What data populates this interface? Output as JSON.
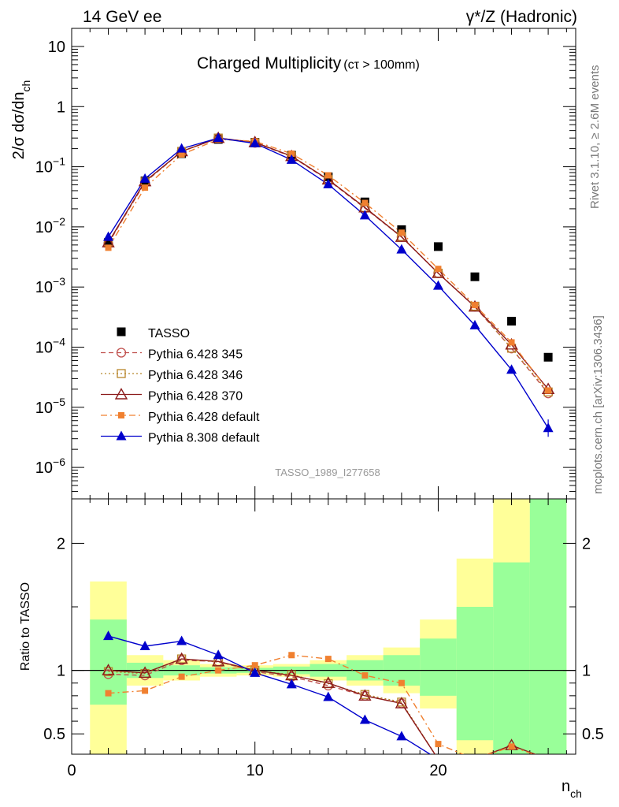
{
  "header": {
    "left": "14 GeV ee",
    "right": "γ*/Z (Hadronic)"
  },
  "side": {
    "rivet": "Rivet 3.1.10, ≥ 2.6M events",
    "mcplots": "mcplots.cern.ch [arXiv:1306.3436]"
  },
  "watermark": "TASSO_1989_I277658",
  "chart_data": [
    {
      "type": "scatter",
      "title": "Charged Multiplicity",
      "title_suffix": "(cτ > 100mm)",
      "ylabel": "2/σ dσ/dn_ch",
      "yscale": "log",
      "xlim": [
        0,
        27.5
      ],
      "ylim": [
        3e-07,
        20
      ],
      "yticks": [
        {
          "v": 1e-06,
          "m": "10",
          "e": "−6"
        },
        {
          "v": 1e-05,
          "m": "10",
          "e": "−5"
        },
        {
          "v": 0.0001,
          "m": "10",
          "e": "−4"
        },
        {
          "v": 0.001,
          "m": "10",
          "e": "−3"
        },
        {
          "v": 0.01,
          "m": "10",
          "e": "−2"
        },
        {
          "v": 0.1,
          "m": "10",
          "e": "−1"
        },
        {
          "v": 1,
          "m": "1",
          "e": ""
        },
        {
          "v": 10,
          "m": "10",
          "e": ""
        }
      ],
      "legend_position": "lower-left",
      "series": [
        {
          "name": "TASSO",
          "marker": "square",
          "color": "#000000",
          "line": "none",
          "x": [
            2,
            4,
            6,
            8,
            10,
            12,
            14,
            16,
            18,
            20,
            22,
            24,
            26
          ],
          "y": [
            0.0055,
            0.058,
            0.165,
            0.285,
            0.255,
            0.155,
            0.068,
            0.026,
            0.009,
            0.0047,
            0.00148,
            0.00027,
            6.8e-05
          ]
        },
        {
          "name": "Pythia 6.428 345",
          "marker": "circle-open",
          "color": "#c0504d",
          "line": "dashed",
          "x": [
            2,
            4,
            6,
            8,
            10,
            12,
            14,
            16,
            18,
            20,
            22,
            24,
            26
          ],
          "y": [
            0.0053,
            0.055,
            0.18,
            0.3,
            0.25,
            0.148,
            0.06,
            0.0205,
            0.0068,
            0.0017,
            0.00047,
            9.5e-05,
            1.7e-05
          ]
        },
        {
          "name": "Pythia 6.428 346",
          "marker": "square-open",
          "color": "#b8862b",
          "line": "dotted",
          "x": [
            2,
            4,
            6,
            8,
            10,
            12,
            14,
            16,
            18,
            20,
            22,
            24,
            26
          ],
          "y": [
            0.0054,
            0.056,
            0.18,
            0.3,
            0.25,
            0.15,
            0.061,
            0.021,
            0.0069,
            0.0017,
            0.00048,
            9.6e-05,
            1.8e-05
          ]
        },
        {
          "name": "Pythia 6.428 370",
          "marker": "triangle-open",
          "color": "#8b1a1a",
          "line": "solid",
          "x": [
            2,
            4,
            6,
            8,
            10,
            12,
            14,
            16,
            18,
            20,
            22,
            24,
            26
          ],
          "y": [
            0.0055,
            0.057,
            0.18,
            0.3,
            0.255,
            0.15,
            0.061,
            0.021,
            0.0068,
            0.0017,
            0.00047,
            0.00011,
            2e-05
          ]
        },
        {
          "name": "Pythia 6.428 default",
          "marker": "square-small",
          "color": "#f08030",
          "line": "dashdot",
          "x": [
            2,
            4,
            6,
            8,
            10,
            12,
            14,
            16,
            18,
            20,
            22,
            24,
            26
          ],
          "y": [
            0.0045,
            0.045,
            0.16,
            0.285,
            0.265,
            0.165,
            0.072,
            0.025,
            0.008,
            0.002,
            0.0005,
            0.00012,
            1.9e-05
          ]
        },
        {
          "name": "Pythia 8.308 default",
          "marker": "triangle",
          "color": "#0000cc",
          "line": "solid",
          "x": [
            2,
            4,
            6,
            8,
            10,
            12,
            14,
            16,
            18,
            20,
            22,
            24,
            26
          ],
          "y": [
            0.0068,
            0.063,
            0.2,
            0.3,
            0.245,
            0.13,
            0.051,
            0.0155,
            0.0042,
            0.00105,
            0.00023,
            4.2e-05,
            4.5e-06
          ]
        }
      ]
    },
    {
      "type": "scatter",
      "ylabel": "Ratio to TASSO",
      "xlabel": "n_ch",
      "xlim": [
        0,
        27.5
      ],
      "ylim": [
        0.34,
        2.35
      ],
      "xticks": [
        0,
        10,
        20
      ],
      "yticks": [
        0.5,
        1,
        2
      ],
      "reference_line": 1,
      "bands": {
        "x_edges": [
          1,
          3,
          5,
          7,
          9,
          11,
          13,
          15,
          17,
          19,
          21,
          23,
          25,
          27
        ],
        "outer": [
          [
            0.3,
            1.7
          ],
          [
            0.88,
            1.12
          ],
          [
            0.92,
            1.08
          ],
          [
            0.95,
            1.05
          ],
          [
            0.96,
            1.04
          ],
          [
            0.95,
            1.05
          ],
          [
            0.92,
            1.08
          ],
          [
            0.88,
            1.12
          ],
          [
            0.82,
            1.18
          ],
          [
            0.7,
            1.4
          ],
          [
            0.3,
            1.88
          ],
          [
            0.3,
            2.4
          ],
          [
            0.3,
            2.4
          ]
        ],
        "inner": [
          [
            0.73,
            1.4
          ],
          [
            0.94,
            1.06
          ],
          [
            0.96,
            1.04
          ],
          [
            0.975,
            1.025
          ],
          [
            0.98,
            1.02
          ],
          [
            0.97,
            1.03
          ],
          [
            0.95,
            1.05
          ],
          [
            0.92,
            1.08
          ],
          [
            0.88,
            1.12
          ],
          [
            0.8,
            1.25
          ],
          [
            0.45,
            1.5
          ],
          [
            0.3,
            1.85
          ],
          [
            0.3,
            2.4
          ]
        ],
        "outer_color": "#ffff99",
        "inner_color": "#99ff99"
      },
      "series": [
        {
          "name": "Pythia 6.428 345",
          "x": [
            2,
            4,
            6,
            8,
            10,
            12,
            14,
            16,
            18,
            20
          ],
          "y": [
            0.97,
            0.96,
            1.08,
            1.07,
            0.99,
            0.95,
            0.88,
            0.8,
            0.74,
            0.3
          ]
        },
        {
          "name": "Pythia 6.428 346",
          "x": [
            2,
            4,
            6,
            8,
            10,
            12,
            14,
            16,
            18,
            20
          ],
          "y": [
            0.99,
            0.975,
            1.09,
            1.065,
            1.0,
            0.965,
            0.895,
            0.81,
            0.75,
            0.3
          ]
        },
        {
          "name": "Pythia 6.428 370",
          "x": [
            2,
            4,
            6,
            8,
            10,
            12,
            14,
            16,
            18,
            20,
            22,
            24,
            26
          ],
          "y": [
            1.0,
            0.98,
            1.09,
            1.07,
            1.0,
            0.96,
            0.9,
            0.8,
            0.74,
            0.3,
            0.3,
            0.41,
            0.3
          ]
        },
        {
          "name": "Pythia 6.428 default",
          "x": [
            2,
            4,
            6,
            8,
            10,
            12,
            14,
            16,
            18,
            20,
            22,
            24,
            26
          ],
          "y": [
            0.82,
            0.84,
            0.95,
            1.0,
            1.04,
            1.12,
            1.09,
            0.96,
            0.9,
            0.42,
            0.3,
            0.4,
            0.3
          ]
        },
        {
          "name": "Pythia 8.308 default",
          "x": [
            2,
            4,
            6,
            8,
            10,
            12,
            14,
            16,
            18,
            20
          ],
          "y": [
            1.27,
            1.19,
            1.23,
            1.12,
            0.98,
            0.89,
            0.79,
            0.61,
            0.48,
            0.3
          ]
        }
      ]
    }
  ]
}
